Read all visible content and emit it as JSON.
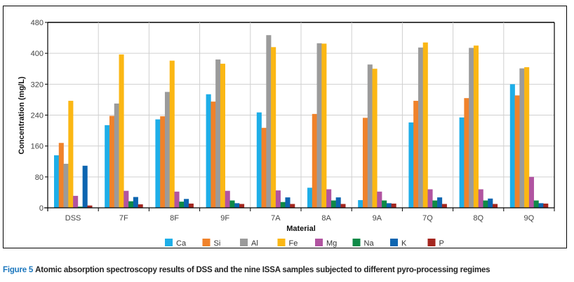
{
  "chart_data": {
    "type": "bar",
    "title": "",
    "xlabel": "Material",
    "ylabel": "Concentration (mg/L)",
    "ylim": [
      0,
      480
    ],
    "yticks": [
      0,
      80,
      160,
      240,
      320,
      400,
      480
    ],
    "grid": true,
    "legend_position": "bottom",
    "categories": [
      "DSS",
      "7F",
      "8F",
      "9F",
      "7A",
      "8A",
      "9A",
      "7Q",
      "8Q",
      "9Q"
    ],
    "series": [
      {
        "name": "Ca",
        "color": "#1eaee8",
        "values": [
          136,
          214,
          229,
          294,
          247,
          52,
          20,
          221,
          234,
          320
        ]
      },
      {
        "name": "Si",
        "color": "#f0822a",
        "values": [
          168,
          238,
          237,
          275,
          207,
          243,
          233,
          277,
          284,
          291
        ]
      },
      {
        "name": "Al",
        "color": "#9b9b9b",
        "values": [
          114,
          270,
          300,
          384,
          447,
          426,
          371,
          415,
          414,
          361
        ]
      },
      {
        "name": "Fe",
        "color": "#fbb714",
        "values": [
          277,
          397,
          381,
          373,
          416,
          425,
          360,
          428,
          420,
          364
        ]
      },
      {
        "name": "Mg",
        "color": "#b154a1",
        "values": [
          31,
          44,
          42,
          44,
          45,
          48,
          42,
          48,
          48,
          80
        ]
      },
      {
        "name": "Na",
        "color": "#0e8a47",
        "values": [
          3,
          17,
          16,
          19,
          15,
          19,
          19,
          19,
          19,
          19
        ]
      },
      {
        "name": "K",
        "color": "#0d65b0",
        "values": [
          109,
          28,
          23,
          12,
          27,
          27,
          12,
          27,
          24,
          12
        ]
      },
      {
        "name": "P",
        "color": "#a4261f",
        "values": [
          6,
          9,
          11,
          10,
          10,
          10,
          11,
          10,
          10,
          11
        ]
      }
    ]
  },
  "caption": {
    "figure_label": "Figure 5",
    "text": "Atomic absorption spectroscopy results of DSS and the nine ISSA samples subjected to different pyro-processing regimes"
  }
}
